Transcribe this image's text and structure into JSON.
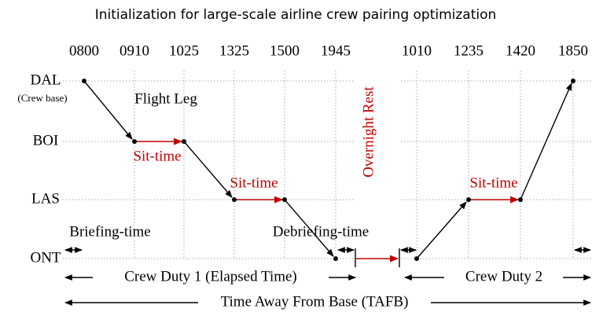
{
  "title": "Initialization for large-scale airline crew pairing optimization",
  "times": [
    "0800",
    "0910",
    "1025",
    "1325",
    "1500",
    "1945",
    "1010",
    "1235",
    "1420",
    "1850"
  ],
  "airports": [
    "DAL",
    "BOI",
    "LAS",
    "ONT"
  ],
  "crew_base_note": "(Crew base)",
  "labels": {
    "flight_leg": "Flight Leg",
    "sit_time": "Sit-time",
    "overnight_rest": "Overnight Rest",
    "briefing": "Briefing-time",
    "debriefing": "Debriefing-time",
    "duty1": "Crew Duty 1 (Elapsed Time)",
    "duty2": "Crew Duty 2",
    "tafb": "Time Away From Base (TAFB)"
  }
}
